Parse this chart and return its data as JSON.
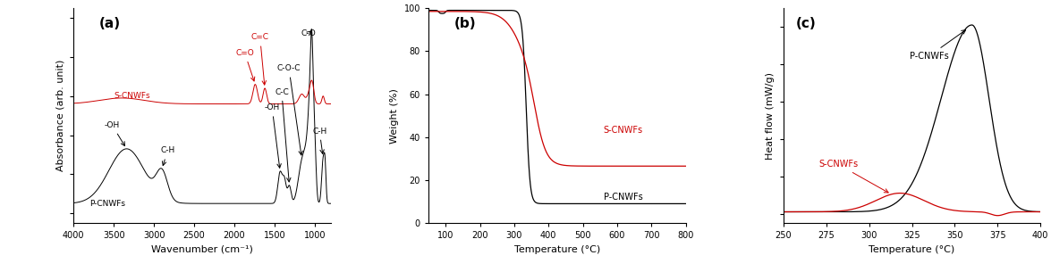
{
  "fig_width": 11.75,
  "fig_height": 3.05,
  "panel_a": {
    "label": "(a)",
    "xlabel": "Wavenumber (cm⁻¹)",
    "ylabel": "Absorbance (arb. unit)",
    "p_color": "#000000",
    "s_color": "#cc0000",
    "p_label": "P-CNWFs",
    "s_label": "S-CNWFs"
  },
  "panel_b": {
    "label": "(b)",
    "xlabel": "Temperature (°C)",
    "ylabel": "Weight (%)",
    "p_color": "#000000",
    "s_color": "#cc0000",
    "p_label": "P-CNWFs",
    "s_label": "S-CNWFs",
    "xlim": [
      50,
      800
    ],
    "ylim": [
      0,
      100
    ],
    "xticks": [
      100,
      200,
      300,
      400,
      500,
      600,
      700,
      800
    ],
    "yticks": [
      0,
      20,
      40,
      60,
      80,
      100
    ]
  },
  "panel_c": {
    "label": "(c)",
    "xlabel": "Temperature (°C)",
    "ylabel": "Heat flow (mW/g)",
    "p_color": "#000000",
    "s_color": "#cc0000",
    "p_label": "P-CNWFs",
    "s_label": "S-CNWFs",
    "xlim": [
      250,
      400
    ],
    "xticks": [
      250,
      275,
      300,
      325,
      350,
      375,
      400
    ]
  }
}
